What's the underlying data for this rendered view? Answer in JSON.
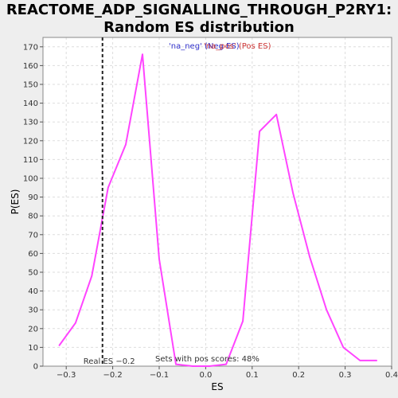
{
  "chart_data": {
    "type": "line",
    "title_line1": "REACTOME_ADP_SIGNALLING_THROUGH_P2RY1:",
    "title_line2": "Random ES distribution",
    "xlabel": "ES",
    "ylabel": "P(ES)",
    "xlim": [
      -0.35,
      0.4
    ],
    "ylim": [
      0,
      175
    ],
    "x_ticks": [
      -0.3,
      -0.2,
      -0.1,
      0.0,
      0.1,
      0.2,
      0.3,
      0.4
    ],
    "x_tick_labels": [
      "−0.3",
      "−0.2",
      "−0.1",
      "0.0",
      "0.1",
      "0.2",
      "0.3",
      "0.4"
    ],
    "y_ticks": [
      0,
      10,
      20,
      30,
      40,
      50,
      60,
      70,
      80,
      90,
      100,
      110,
      120,
      130,
      140,
      150,
      160,
      170
    ],
    "grid": true,
    "legend_neg": "'na_neg' (Neg ES)",
    "legend_pos": "'na_pos' (Pos ES)",
    "real_es": -0.222,
    "real_es_label": "Real ES −0.2",
    "pos_scores_label": "Sets with pos scores: 48%",
    "series": [
      {
        "color": "#ff44ff",
        "x": [
          -0.315,
          -0.28,
          -0.245,
          -0.21,
          -0.172,
          -0.136,
          -0.1,
          -0.064,
          -0.028,
          0.008,
          0.044,
          0.08,
          0.116,
          0.152,
          0.188,
          0.224,
          0.26,
          0.296,
          0.332,
          0.368
        ],
        "y": [
          11,
          23,
          48,
          95,
          118,
          166,
          57,
          1,
          0,
          0,
          1,
          24,
          125,
          134,
          92,
          58,
          30,
          10,
          3,
          3
        ]
      }
    ]
  }
}
